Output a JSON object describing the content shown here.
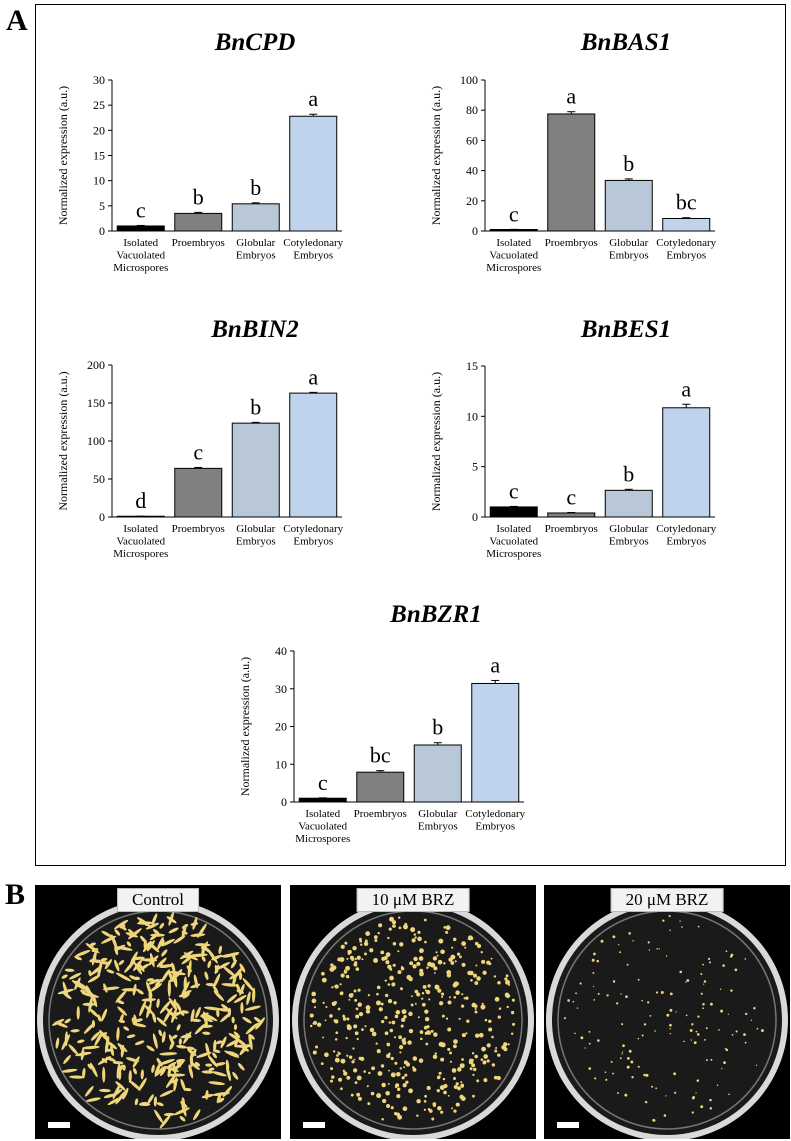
{
  "panel_labels": {
    "a": "A",
    "b": "B"
  },
  "chart_data": [
    {
      "type": "bar",
      "title": "BnCPD",
      "ylabel": "Normalized expression (a.u.)",
      "categories": [
        [
          "Isolated",
          "Vacuolated",
          "Microspores"
        ],
        [
          "Proembryos"
        ],
        [
          "Globular",
          "Embryos"
        ],
        [
          "Cotyledonary",
          "Embryos"
        ]
      ],
      "values": [
        1,
        3.5,
        5.4,
        22.8
      ],
      "errors": [
        0.1,
        0.2,
        0.2,
        0.4
      ],
      "significance": [
        "c",
        "b",
        "b",
        "a"
      ],
      "ylim": [
        0,
        30
      ],
      "yticks": [
        0,
        5,
        10,
        15,
        20,
        25,
        30
      ],
      "colors": [
        "#000000",
        "#808080",
        "#b8c8d8",
        "#bfd3ec"
      ]
    },
    {
      "type": "bar",
      "title": "BnBAS1",
      "ylabel": "Normalized expression (a.u.)",
      "categories": [
        [
          "Isolated",
          "Vacuolated",
          "Microspores"
        ],
        [
          "Proembryos"
        ],
        [
          "Globular",
          "Embryos"
        ],
        [
          "Cotyledonary",
          "Embryos"
        ]
      ],
      "values": [
        1,
        77.5,
        33.5,
        8.3
      ],
      "errors": [
        0.1,
        1.5,
        1,
        0.5
      ],
      "significance": [
        "c",
        "a",
        "b",
        "bc"
      ],
      "ylim": [
        0,
        100
      ],
      "yticks": [
        0,
        20,
        40,
        60,
        80,
        100
      ],
      "colors": [
        "#000000",
        "#808080",
        "#b8c8d8",
        "#bfd3ec"
      ]
    },
    {
      "type": "bar",
      "title": "BnBIN2",
      "ylabel": "Normalized expression (a.u.)",
      "categories": [
        [
          "Isolated",
          "Vacuolated",
          "Microspores"
        ],
        [
          "Proembryos"
        ],
        [
          "Globular",
          "Embryos"
        ],
        [
          "Cotyledonary",
          "Embryos"
        ]
      ],
      "values": [
        1,
        64,
        123.5,
        163
      ],
      "errors": [
        0.1,
        1.2,
        1,
        1
      ],
      "significance": [
        "d",
        "c",
        "b",
        "a"
      ],
      "ylim": [
        0,
        200
      ],
      "yticks": [
        0,
        50,
        100,
        150,
        200
      ],
      "colors": [
        "#000000",
        "#808080",
        "#b8c8d8",
        "#bfd3ec"
      ]
    },
    {
      "type": "bar",
      "title": "BnBES1",
      "ylabel": "Normalized expression (a.u.)",
      "categories": [
        [
          "Isolated",
          "Vacuolated",
          "Microspores"
        ],
        [
          "Proembryos"
        ],
        [
          "Globular",
          "Embryos"
        ],
        [
          "Cotyledonary",
          "Embryos"
        ]
      ],
      "values": [
        1,
        0.4,
        2.65,
        10.85
      ],
      "errors": [
        0.05,
        0.05,
        0.1,
        0.35
      ],
      "significance": [
        "c",
        "c",
        "b",
        "a"
      ],
      "ylim": [
        0,
        15
      ],
      "yticks": [
        0,
        5,
        10,
        15
      ],
      "colors": [
        "#000000",
        "#808080",
        "#b8c8d8",
        "#bfd3ec"
      ]
    },
    {
      "type": "bar",
      "title": "BnBZR1",
      "ylabel": "Normalized expression (a.u.)",
      "categories": [
        [
          "Isolated",
          "Vacuolated",
          "Microspores"
        ],
        [
          "Proembryos"
        ],
        [
          "Globular",
          "Embryos"
        ],
        [
          "Cotyledonary",
          "Embryos"
        ]
      ],
      "values": [
        1,
        7.9,
        15.1,
        31.4
      ],
      "errors": [
        0.1,
        0.4,
        0.6,
        0.8
      ],
      "significance": [
        "c",
        "bc",
        "b",
        "a"
      ],
      "ylim": [
        0,
        40
      ],
      "yticks": [
        0,
        10,
        20,
        30,
        40
      ],
      "colors": [
        "#000000",
        "#808080",
        "#b8c8d8",
        "#bfd3ec"
      ]
    }
  ],
  "photos": [
    {
      "label": "Control",
      "density": 0.9,
      "particle": "large"
    },
    {
      "label": "10 μM BRZ",
      "density": 0.65,
      "particle": "medium"
    },
    {
      "label": "20 μM BRZ",
      "density": 0.3,
      "particle": "small"
    }
  ],
  "colors": {
    "frame": "#000000",
    "photo_bg": "#000000",
    "dish_rim": "#d9d9d9",
    "embryo": "#f0d67a",
    "label_bg": "#f2f2f2"
  }
}
